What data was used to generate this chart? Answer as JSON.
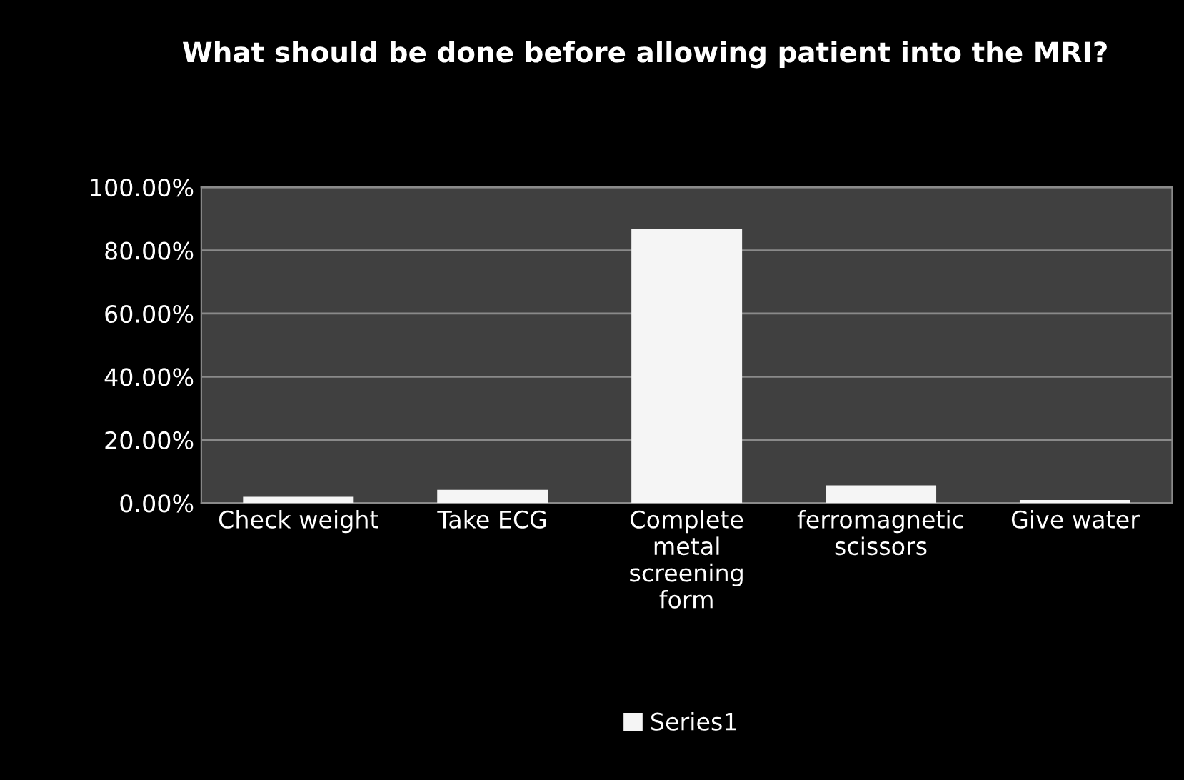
{
  "chart_data": {
    "type": "bar",
    "title": "What should be done before allowing patient into the MRI?",
    "categories": [
      "Check weight",
      "Take ECG",
      "Complete\nmetal\nscreening\nform",
      "ferromagnetic\nscissors",
      "Give water"
    ],
    "series": [
      {
        "name": "Series1",
        "color": "#f5f5f5",
        "values": [
          2.0,
          4.2,
          86.7,
          5.6,
          1.0
        ]
      }
    ],
    "ylim": [
      0,
      100
    ],
    "yticks": [
      {
        "value": 0,
        "label": "0.00%"
      },
      {
        "value": 20,
        "label": "20.00%"
      },
      {
        "value": 40,
        "label": "40.00%"
      },
      {
        "value": 60,
        "label": "60.00%"
      },
      {
        "value": 80,
        "label": "80.00%"
      },
      {
        "value": 100,
        "label": "100.00%"
      }
    ],
    "grid": "y",
    "legend": "bottom"
  }
}
